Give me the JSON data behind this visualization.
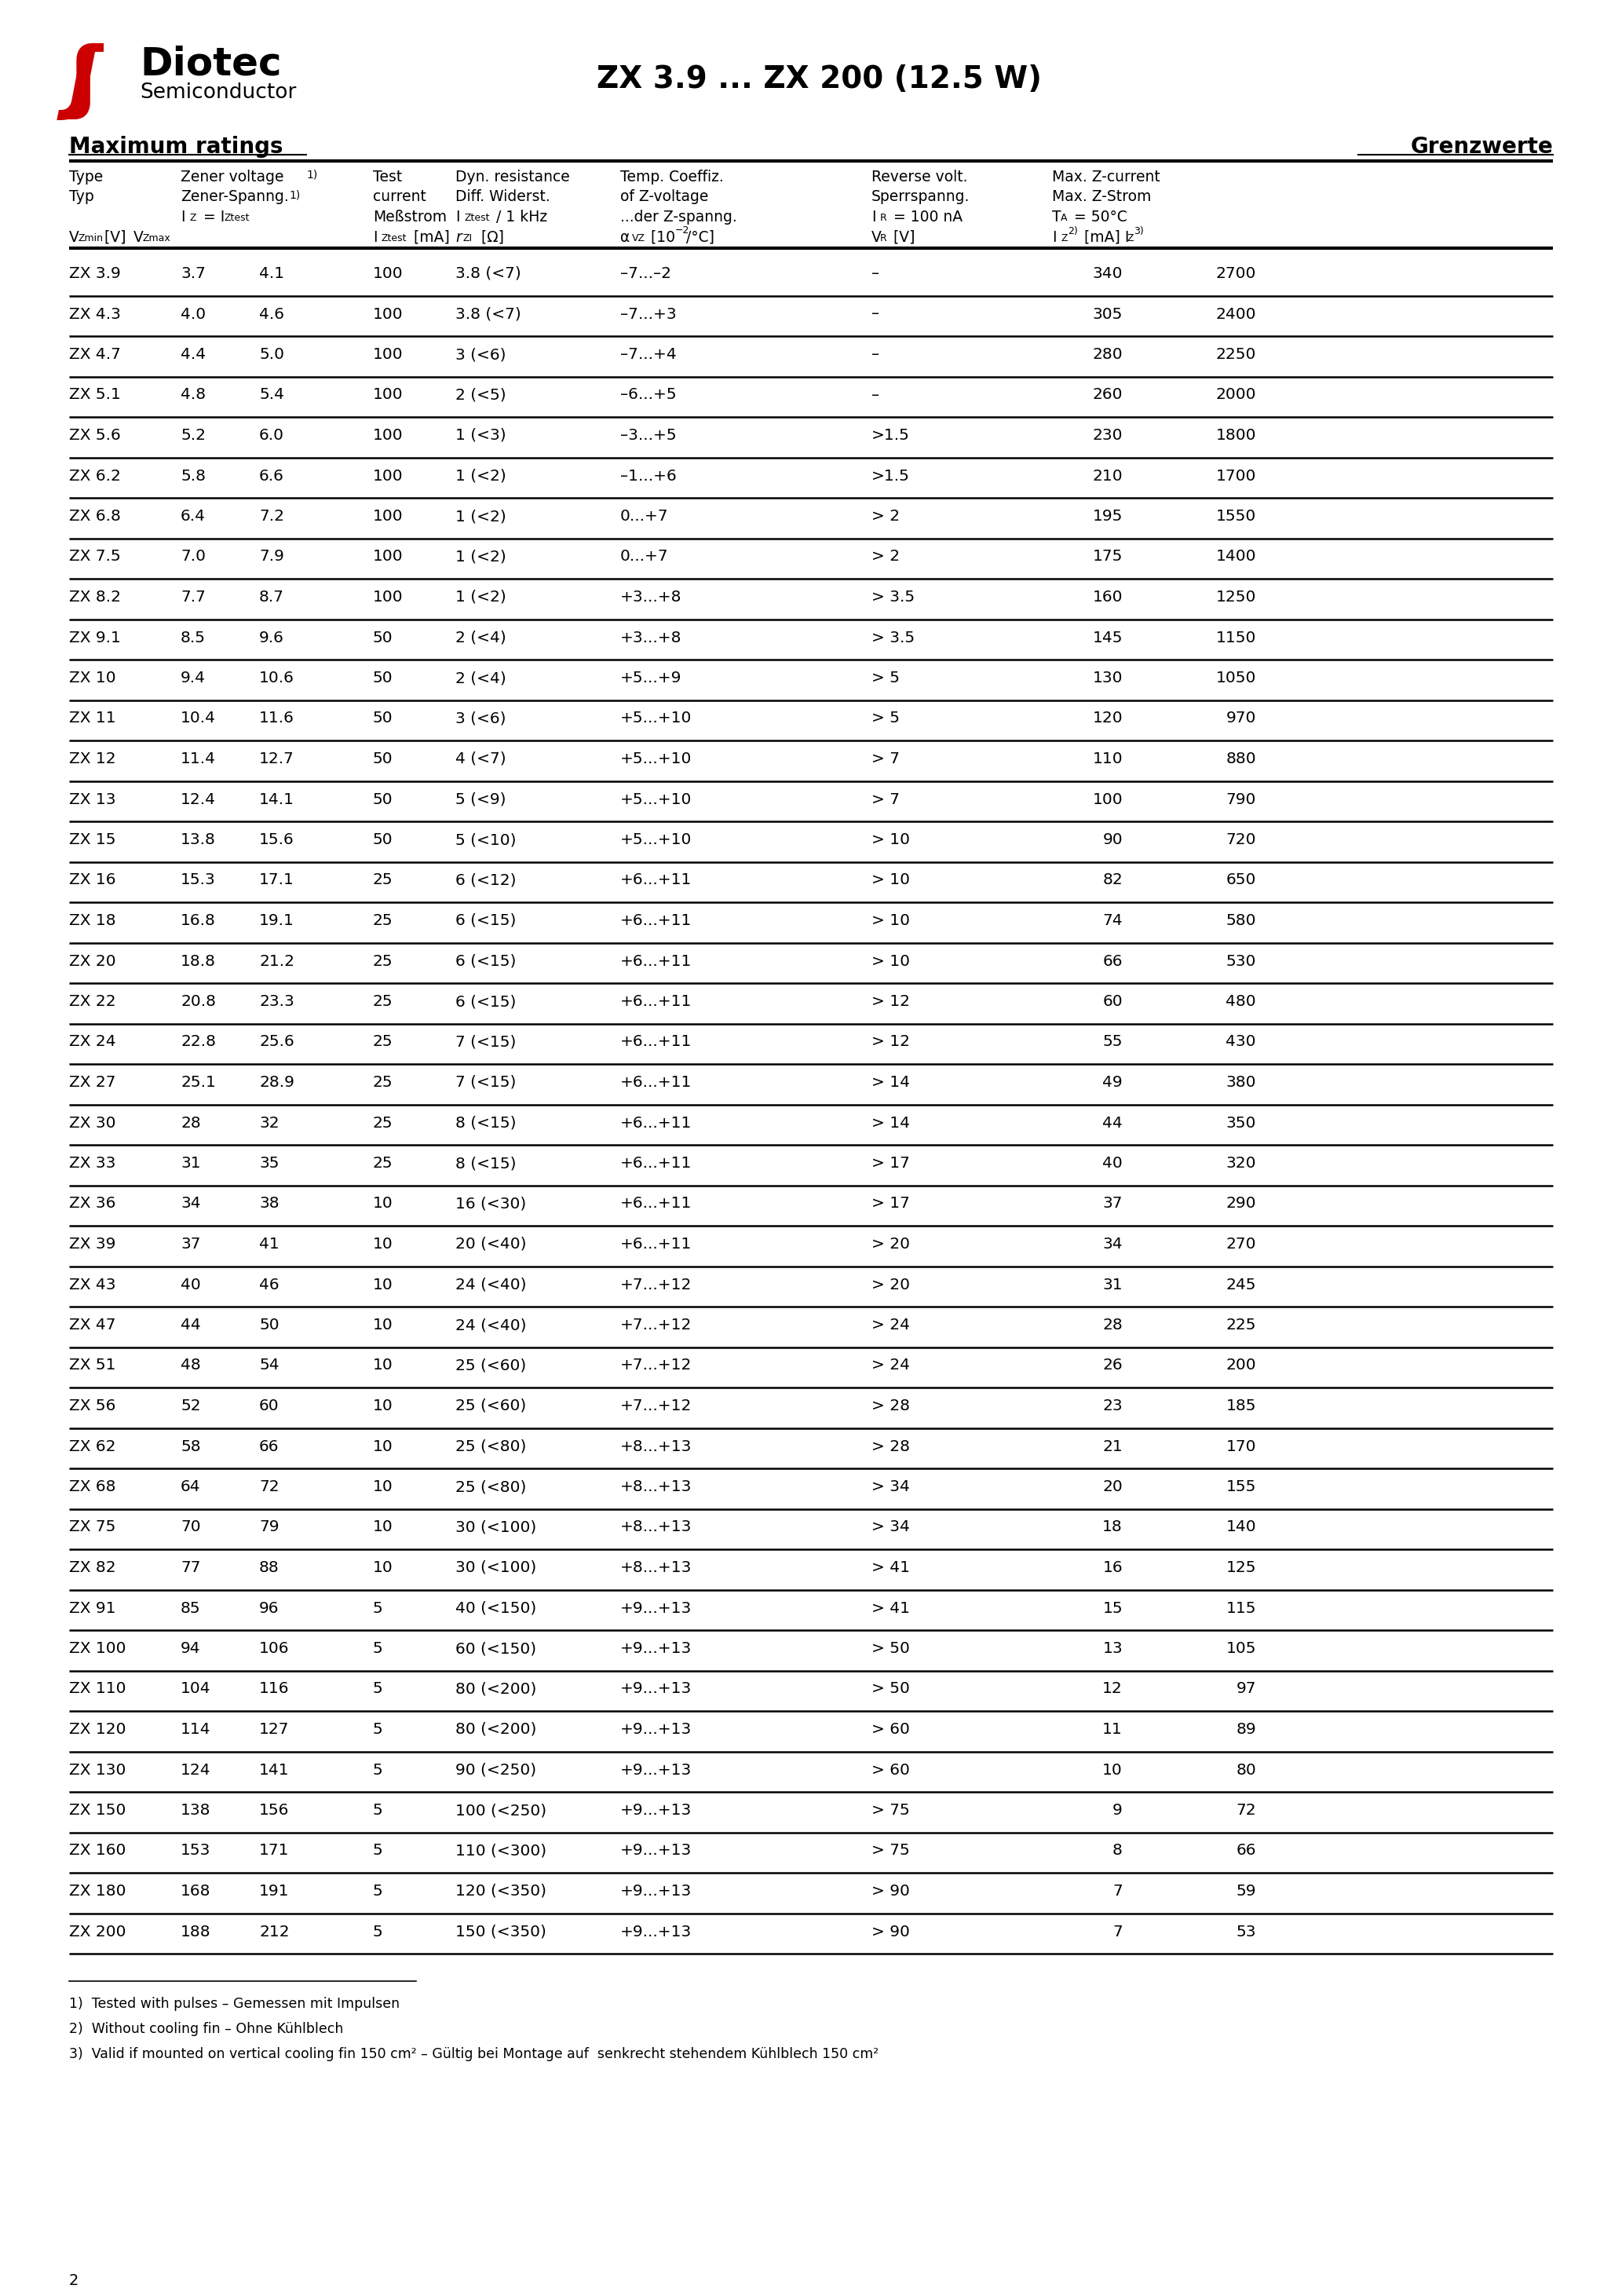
{
  "title": "ZX 3.9 ... ZX 200 (12.5 W)",
  "page_number": "2",
  "header_left": "Maximum ratings",
  "header_right": "Grenzwerte",
  "footnotes": [
    "1)  Tested with pulses – Gemessen mit Impulsen",
    "2)  Without cooling fin – Ohne Kühlblech",
    "3)  Valid if mounted on vertical cooling fin 150 cm² – Gültig bei Montage auf  senkrecht stehendem Kühlblech 150 cm²"
  ],
  "rows": [
    [
      "ZX 3.9",
      "3.7",
      "4.1",
      "100",
      "3.8 (<7)",
      "–7...–2",
      "–",
      "340",
      "2700"
    ],
    [
      "ZX 4.3",
      "4.0",
      "4.6",
      "100",
      "3.8 (<7)",
      "–7...+3",
      "–",
      "305",
      "2400"
    ],
    [
      "ZX 4.7",
      "4.4",
      "5.0",
      "100",
      "3 (<6)",
      "–7...+4",
      "–",
      "280",
      "2250"
    ],
    [
      "ZX 5.1",
      "4.8",
      "5.4",
      "100",
      "2 (<5)",
      "–6...+5",
      "–",
      "260",
      "2000"
    ],
    [
      "ZX 5.6",
      "5.2",
      "6.0",
      "100",
      "1 (<3)",
      "–3...+5",
      ">1.5",
      "230",
      "1800"
    ],
    [
      "ZX 6.2",
      "5.8",
      "6.6",
      "100",
      "1 (<2)",
      "–1...+6",
      ">1.5",
      "210",
      "1700"
    ],
    [
      "ZX 6.8",
      "6.4",
      "7.2",
      "100",
      "1 (<2)",
      "0...+7",
      "> 2",
      "195",
      "1550"
    ],
    [
      "ZX 7.5",
      "7.0",
      "7.9",
      "100",
      "1 (<2)",
      "0...+7",
      "> 2",
      "175",
      "1400"
    ],
    [
      "ZX 8.2",
      "7.7",
      "8.7",
      "100",
      "1 (<2)",
      "+3...+8",
      "> 3.5",
      "160",
      "1250"
    ],
    [
      "ZX 9.1",
      "8.5",
      "9.6",
      "50",
      "2 (<4)",
      "+3...+8",
      "> 3.5",
      "145",
      "1150"
    ],
    [
      "ZX 10",
      "9.4",
      "10.6",
      "50",
      "2 (<4)",
      "+5...+9",
      "> 5",
      "130",
      "1050"
    ],
    [
      "ZX 11",
      "10.4",
      "11.6",
      "50",
      "3 (<6)",
      "+5...+10",
      "> 5",
      "120",
      "970"
    ],
    [
      "ZX 12",
      "11.4",
      "12.7",
      "50",
      "4 (<7)",
      "+5...+10",
      "> 7",
      "110",
      "880"
    ],
    [
      "ZX 13",
      "12.4",
      "14.1",
      "50",
      "5 (<9)",
      "+5...+10",
      "> 7",
      "100",
      "790"
    ],
    [
      "ZX 15",
      "13.8",
      "15.6",
      "50",
      "5 (<10)",
      "+5...+10",
      "> 10",
      "90",
      "720"
    ],
    [
      "ZX 16",
      "15.3",
      "17.1",
      "25",
      "6 (<12)",
      "+6...+11",
      "> 10",
      "82",
      "650"
    ],
    [
      "ZX 18",
      "16.8",
      "19.1",
      "25",
      "6 (<15)",
      "+6...+11",
      "> 10",
      "74",
      "580"
    ],
    [
      "ZX 20",
      "18.8",
      "21.2",
      "25",
      "6 (<15)",
      "+6...+11",
      "> 10",
      "66",
      "530"
    ],
    [
      "ZX 22",
      "20.8",
      "23.3",
      "25",
      "6 (<15)",
      "+6...+11",
      "> 12",
      "60",
      "480"
    ],
    [
      "ZX 24",
      "22.8",
      "25.6",
      "25",
      "7 (<15)",
      "+6...+11",
      "> 12",
      "55",
      "430"
    ],
    [
      "ZX 27",
      "25.1",
      "28.9",
      "25",
      "7 (<15)",
      "+6...+11",
      "> 14",
      "49",
      "380"
    ],
    [
      "ZX 30",
      "28",
      "32",
      "25",
      "8 (<15)",
      "+6...+11",
      "> 14",
      "44",
      "350"
    ],
    [
      "ZX 33",
      "31",
      "35",
      "25",
      "8 (<15)",
      "+6...+11",
      "> 17",
      "40",
      "320"
    ],
    [
      "ZX 36",
      "34",
      "38",
      "10",
      "16 (<30)",
      "+6...+11",
      "> 17",
      "37",
      "290"
    ],
    [
      "ZX 39",
      "37",
      "41",
      "10",
      "20 (<40)",
      "+6...+11",
      "> 20",
      "34",
      "270"
    ],
    [
      "ZX 43",
      "40",
      "46",
      "10",
      "24 (<40)",
      "+7...+12",
      "> 20",
      "31",
      "245"
    ],
    [
      "ZX 47",
      "44",
      "50",
      "10",
      "24 (<40)",
      "+7...+12",
      "> 24",
      "28",
      "225"
    ],
    [
      "ZX 51",
      "48",
      "54",
      "10",
      "25 (<60)",
      "+7...+12",
      "> 24",
      "26",
      "200"
    ],
    [
      "ZX 56",
      "52",
      "60",
      "10",
      "25 (<60)",
      "+7...+12",
      "> 28",
      "23",
      "185"
    ],
    [
      "ZX 62",
      "58",
      "66",
      "10",
      "25 (<80)",
      "+8...+13",
      "> 28",
      "21",
      "170"
    ],
    [
      "ZX 68",
      "64",
      "72",
      "10",
      "25 (<80)",
      "+8...+13",
      "> 34",
      "20",
      "155"
    ],
    [
      "ZX 75",
      "70",
      "79",
      "10",
      "30 (<100)",
      "+8...+13",
      "> 34",
      "18",
      "140"
    ],
    [
      "ZX 82",
      "77",
      "88",
      "10",
      "30 (<100)",
      "+8...+13",
      "> 41",
      "16",
      "125"
    ],
    [
      "ZX 91",
      "85",
      "96",
      "5",
      "40 (<150)",
      "+9...+13",
      "> 41",
      "15",
      "115"
    ],
    [
      "ZX 100",
      "94",
      "106",
      "5",
      "60 (<150)",
      "+9...+13",
      "> 50",
      "13",
      "105"
    ],
    [
      "ZX 110",
      "104",
      "116",
      "5",
      "80 (<200)",
      "+9...+13",
      "> 50",
      "12",
      "97"
    ],
    [
      "ZX 120",
      "114",
      "127",
      "5",
      "80 (<200)",
      "+9...+13",
      "> 60",
      "11",
      "89"
    ],
    [
      "ZX 130",
      "124",
      "141",
      "5",
      "90 (<250)",
      "+9...+13",
      "> 60",
      "10",
      "80"
    ],
    [
      "ZX 150",
      "138",
      "156",
      "5",
      "100 (<250)",
      "+9...+13",
      "> 75",
      "9",
      "72"
    ],
    [
      "ZX 160",
      "153",
      "171",
      "5",
      "110 (<300)",
      "+9...+13",
      "> 75",
      "8",
      "66"
    ],
    [
      "ZX 180",
      "168",
      "191",
      "5",
      "120 (<350)",
      "+9...+13",
      "> 90",
      "7",
      "59"
    ],
    [
      "ZX 200",
      "188",
      "212",
      "5",
      "150 (<350)",
      "+9...+13",
      "> 90",
      "7",
      "53"
    ]
  ]
}
